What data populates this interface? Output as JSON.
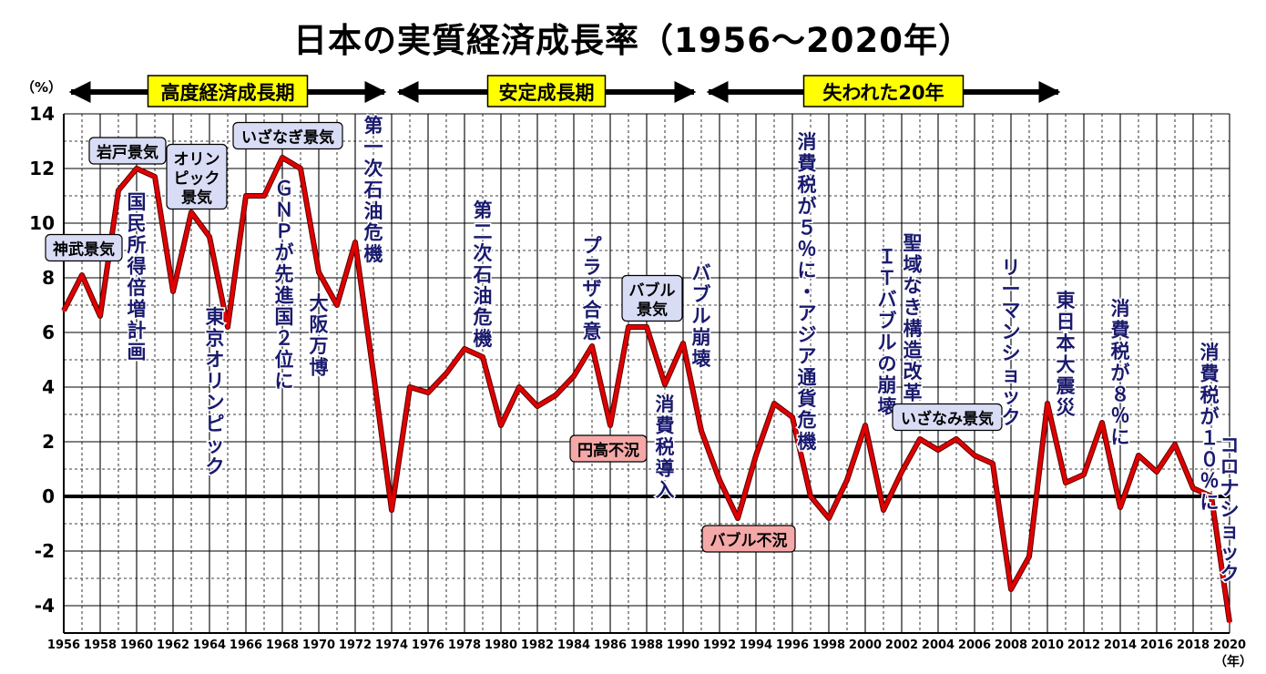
{
  "title": "日本の実質経済成長率（1956〜2020年）",
  "colors": {
    "line": "#e00000",
    "text_blue": "#1a1a6e",
    "box_blue": "#d9dcf5",
    "box_pink": "#f5a8a8",
    "box_yellow": "#ffff00"
  },
  "periods": [
    {
      "label": "高度経済成長期",
      "start": 1956,
      "end": 1974
    },
    {
      "label": "安定成長期",
      "start": 1974,
      "end": 1991
    },
    {
      "label": "失われた20年",
      "start": 1991,
      "end": 2011
    }
  ],
  "events": [
    {
      "text": "神武景気",
      "year": 1957.1,
      "y": 9.1,
      "style": "blue-box"
    },
    {
      "text": "岩戸景気",
      "year": 1959.5,
      "y": 12.65,
      "style": "blue-box"
    },
    {
      "text": "オリンピック景気",
      "lines": [
        "オリン",
        "ピック",
        "景気"
      ],
      "year": 1963.3,
      "y": 11.7,
      "style": "blue-box"
    },
    {
      "text": "いざなぎ景気",
      "year": 1968.3,
      "y": 13.2,
      "style": "blue-box"
    },
    {
      "text": "国民所得倍増計画",
      "year": 1960.0,
      "y": 11.2,
      "style": "vertical"
    },
    {
      "text": "東京オリンピック",
      "year": 1964.3,
      "y": 7.0,
      "style": "vertical"
    },
    {
      "text": "ＧＮＰが先進国２位に",
      "year": 1968.1,
      "y": 11.7,
      "style": "vertical"
    },
    {
      "text": "大阪万博",
      "year": 1970.0,
      "y": 7.5,
      "style": "vertical"
    },
    {
      "text": "第一次石油危機",
      "year": 1973.0,
      "y": 14.0,
      "style": "vertical"
    },
    {
      "text": "第二次石油危機",
      "year": 1979.0,
      "y": 10.9,
      "style": "vertical"
    },
    {
      "text": "プラザ合意",
      "year": 1985.0,
      "y": 9.6,
      "style": "vertical"
    },
    {
      "text": "円高不況",
      "year": 1985.9,
      "y": 1.75,
      "style": "pink-box"
    },
    {
      "text": "バブル景気",
      "lines": [
        "バブル",
        "景気"
      ],
      "year": 1988.3,
      "y": 7.25,
      "style": "blue-box"
    },
    {
      "text": "消費税導入",
      "year": 1989.0,
      "y": 3.8,
      "style": "vertical"
    },
    {
      "text": "バブル崩壊",
      "year": 1991.0,
      "y": 8.6,
      "style": "vertical"
    },
    {
      "text": "バブル不況",
      "year": 1993.6,
      "y": -1.55,
      "style": "pink-box"
    },
    {
      "text": "消費税が５％に・アジア通貨危機",
      "year": 1996.8,
      "y": 13.4,
      "style": "vertical"
    },
    {
      "text": "聖域なき構造改革",
      "year": 2002.6,
      "y": 9.7,
      "style": "vertical"
    },
    {
      "text": "ＩＴバブルの崩壊",
      "year": 2001.2,
      "y": 9.2,
      "style": "vertical"
    },
    {
      "text": "いざなみ景気",
      "year": 2004.5,
      "y": 2.9,
      "style": "blue-box"
    },
    {
      "text": "リーマンショック",
      "year": 2008.0,
      "y": 8.8,
      "style": "vertical"
    },
    {
      "text": "東日本大震災",
      "year": 2011.0,
      "y": 7.6,
      "style": "vertical"
    },
    {
      "text": "消費税が８％に",
      "year": 2014.0,
      "y": 7.3,
      "style": "vertical"
    },
    {
      "text": "消費税が１０％に",
      "year": 2018.9,
      "y": 5.7,
      "style": "vertical"
    },
    {
      "text": "コロナショック",
      "year": 2020.0,
      "y": 2.3,
      "style": "vertical"
    }
  ],
  "chart_data": {
    "type": "line",
    "title": "日本の実質経済成長率（1956〜2020年）",
    "xlabel": "（年）",
    "ylabel": "（%）",
    "xlim": [
      1956,
      2020
    ],
    "ylim": [
      -5,
      14
    ],
    "yticks": [
      14,
      12,
      10,
      8,
      6,
      4,
      2,
      0,
      -2,
      -4
    ],
    "xticks": [
      1956,
      1958,
      1960,
      1962,
      1964,
      1966,
      1968,
      1970,
      1972,
      1974,
      1976,
      1978,
      1980,
      1982,
      1984,
      1986,
      1988,
      1990,
      1992,
      1994,
      1996,
      1998,
      2000,
      2002,
      2004,
      2006,
      2008,
      2010,
      2012,
      2014,
      2016,
      2018,
      2020
    ],
    "grid": true,
    "series": [
      {
        "x": [
          1956,
          1957,
          1958,
          1959,
          1960,
          1961,
          1962,
          1963,
          1964,
          1965,
          1966,
          1967,
          1968,
          1969,
          1970,
          1971,
          1972,
          1973,
          1974,
          1975,
          1976,
          1977,
          1978,
          1979,
          1980,
          1981,
          1982,
          1983,
          1984,
          1985,
          1986,
          1987,
          1988,
          1989,
          1990,
          1991,
          1992,
          1993,
          1994,
          1995,
          1996,
          1997,
          1998,
          1999,
          2000,
          2001,
          2002,
          2003,
          2004,
          2005,
          2006,
          2007,
          2008,
          2009,
          2010,
          2011,
          2012,
          2013,
          2014,
          2015,
          2016,
          2017,
          2018,
          2019,
          2020
        ],
        "values": [
          6.8,
          8.1,
          6.6,
          11.2,
          12.0,
          11.7,
          7.5,
          10.4,
          9.5,
          6.2,
          11.0,
          11.0,
          12.4,
          12.0,
          8.2,
          7.0,
          9.3,
          4.5,
          -0.5,
          4.0,
          3.8,
          4.5,
          5.4,
          5.1,
          2.6,
          4.0,
          3.3,
          3.7,
          4.4,
          5.5,
          2.6,
          6.2,
          6.2,
          4.1,
          5.6,
          2.4,
          0.6,
          -0.8,
          1.5,
          3.4,
          2.9,
          0.0,
          -0.8,
          0.6,
          2.6,
          -0.5,
          0.9,
          2.1,
          1.7,
          2.1,
          1.5,
          1.2,
          -3.4,
          -2.2,
          3.4,
          0.5,
          0.8,
          2.7,
          -0.4,
          1.5,
          0.9,
          1.9,
          0.3,
          0.0,
          -4.6
        ]
      }
    ]
  }
}
